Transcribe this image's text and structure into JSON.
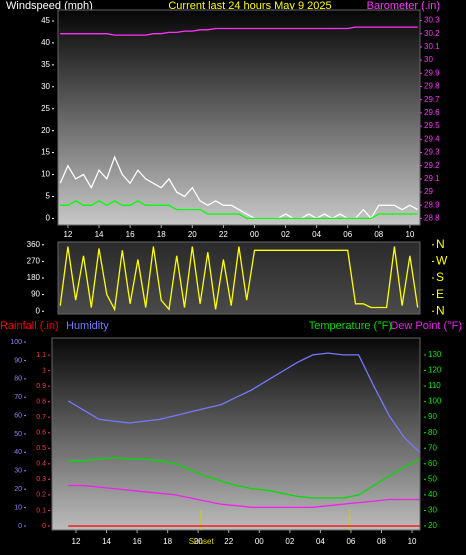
{
  "chart_data": [
    {
      "type": "line",
      "title": "Current last 24 hours May 9 2025",
      "ylabel": "Windspeed (mph)",
      "y2label": "Barometer (.in)",
      "x": [
        11.5,
        12,
        12.5,
        13,
        13.5,
        14,
        14.5,
        15,
        15.5,
        16,
        16.5,
        17,
        17.5,
        18,
        18.5,
        19,
        19.5,
        20,
        20.5,
        21,
        21.5,
        22,
        22.5,
        23,
        23.5,
        24,
        24.5,
        25,
        25.5,
        26,
        26.5,
        27,
        27.5,
        28,
        28.5,
        29,
        29.5,
        30,
        30.5,
        31,
        31.5,
        32,
        32.5,
        33,
        33.5,
        34,
        34.5
      ],
      "xlim": [
        11.36,
        34.65
      ],
      "xticks": [
        12,
        14,
        16,
        18,
        20,
        22,
        {
          "value": 24,
          "label": "00"
        },
        {
          "value": 26,
          "label": "02"
        },
        {
          "value": 28,
          "label": "04"
        },
        {
          "value": 30,
          "label": "06"
        },
        {
          "value": 32,
          "label": "08"
        },
        {
          "value": 34,
          "label": "10"
        }
      ],
      "ylim": [
        -1.5,
        47.5
      ],
      "yticks": [
        0,
        5,
        10,
        15,
        20,
        25,
        30,
        35,
        40,
        45
      ],
      "ycolor": "#ffffff",
      "y2lim": [
        28.75,
        30.38
      ],
      "y2ticks": [
        28.8,
        28.9,
        29,
        29.1,
        29.2,
        29.3,
        29.4,
        29.5,
        29.6,
        29.7,
        29.8,
        29.9,
        30,
        30.1,
        30.2,
        30.3
      ],
      "y2color": "#ff33ff",
      "series": [
        {
          "color": "#ffffff",
          "values": [
            8,
            12,
            9,
            10,
            7,
            11,
            9,
            14,
            10,
            8,
            11,
            9,
            8,
            7,
            9,
            6,
            5,
            7,
            4,
            3,
            4,
            3,
            3,
            2,
            1,
            0,
            0,
            0,
            0,
            1,
            0,
            0,
            1,
            0,
            1,
            0,
            1,
            0,
            0,
            2,
            0,
            3,
            3,
            3,
            2,
            3,
            2
          ]
        },
        {
          "color": "#00ff00",
          "values": [
            3,
            3,
            4,
            3,
            3,
            4,
            3,
            4,
            3,
            3,
            4,
            3,
            3,
            3,
            3,
            2,
            2,
            2,
            2,
            1,
            1,
            1,
            1,
            1,
            0,
            0,
            0,
            0,
            0,
            0,
            0,
            0,
            0,
            0,
            0,
            0,
            0,
            0,
            0,
            0,
            0,
            1,
            1,
            1,
            1,
            1,
            1
          ]
        },
        {
          "color": "#ff33ff",
          "axis": "y2",
          "values": [
            30.2,
            30.2,
            30.2,
            30.2,
            30.2,
            30.2,
            30.2,
            30.19,
            30.19,
            30.19,
            30.19,
            30.19,
            30.2,
            30.2,
            30.21,
            30.21,
            30.22,
            30.22,
            30.23,
            30.23,
            30.24,
            30.24,
            30.24,
            30.24,
            30.24,
            30.24,
            30.24,
            30.24,
            30.24,
            30.24,
            30.24,
            30.24,
            30.24,
            30.24,
            30.24,
            30.24,
            30.24,
            30.24,
            30.25,
            30.25,
            30.25,
            30.25,
            30.25,
            30.25,
            30.25,
            30.25,
            30.25
          ]
        }
      ]
    },
    {
      "type": "line",
      "x": [
        11.5,
        12,
        12.5,
        13,
        13.5,
        14,
        14.5,
        15,
        15.5,
        16,
        16.5,
        17,
        17.5,
        18,
        18.5,
        19,
        19.5,
        20,
        20.5,
        21,
        21.5,
        22,
        22.5,
        23,
        23.5,
        24,
        24.5,
        25,
        25.5,
        26,
        26.5,
        27,
        27.5,
        28,
        28.5,
        29,
        29.5,
        30,
        30.5,
        31,
        31.5,
        32,
        32.5,
        33,
        33.5,
        34,
        34.5
      ],
      "xlim": [
        11.36,
        34.65
      ],
      "ylim": [
        -15,
        375
      ],
      "yticks": [
        0,
        90,
        180,
        270,
        360
      ],
      "ycolor": "#ffffff",
      "y2lim": [
        -15,
        375
      ],
      "y2ticks": [
        {
          "value": 0,
          "label": "N"
        },
        {
          "value": 90,
          "label": "E"
        },
        {
          "value": 180,
          "label": "S"
        },
        {
          "value": 270,
          "label": "W"
        },
        {
          "value": 360,
          "label": "N"
        }
      ],
      "y2color": "#ffff00",
      "series": [
        {
          "color": "#ffff00",
          "values": [
            30,
            350,
            60,
            300,
            20,
            340,
            90,
            10,
            330,
            40,
            280,
            20,
            350,
            60,
            10,
            300,
            20,
            350,
            40,
            320,
            10,
            280,
            30,
            350,
            60,
            330,
            330,
            330,
            330,
            330,
            330,
            330,
            330,
            330,
            330,
            330,
            330,
            330,
            40,
            40,
            20,
            20,
            20,
            350,
            30,
            300,
            20
          ]
        }
      ]
    },
    {
      "type": "line",
      "x": [
        11.5,
        12.5,
        13.5,
        14.5,
        15.5,
        16.5,
        17.5,
        18.5,
        19.5,
        20.5,
        21.5,
        22.5,
        23.5,
        24.5,
        25.5,
        26.5,
        27.5,
        28.5,
        29.5,
        30.5,
        31.5,
        32.5,
        33.5,
        34.5
      ],
      "xlim": [
        10.43,
        34.52
      ],
      "xticks": [
        12,
        14,
        16,
        18,
        20,
        22,
        {
          "value": 24,
          "label": "00"
        },
        {
          "value": 26,
          "label": "02"
        },
        {
          "value": 28,
          "label": "04"
        },
        {
          "value": 30,
          "label": "06"
        },
        {
          "value": 32,
          "label": "08"
        },
        {
          "value": 34,
          "label": "10"
        }
      ],
      "ylim": [
        -0.026,
        1.21
      ],
      "yticks": [
        0,
        0.1,
        0.2,
        0.3,
        0.4,
        0.5,
        0.6,
        0.7,
        0.8,
        0.9,
        1,
        1.1
      ],
      "ycolor": "#ff3355",
      "y2lim": [
        17.4,
        140.9
      ],
      "y2ticks": [
        20,
        30,
        40,
        50,
        60,
        70,
        80,
        90,
        100,
        110,
        120,
        130
      ],
      "y2color": "#00ee00",
      "y3lim": [
        -2.2,
        102.2
      ],
      "y3ticks": [
        0,
        10,
        20,
        30,
        40,
        50,
        60,
        70,
        80,
        90,
        100
      ],
      "y3color": "#8888ff",
      "series": [
        {
          "name": "Rainfall (.in)",
          "color": "#ff0000",
          "values": [
            0,
            0,
            0,
            0,
            0,
            0,
            0,
            0,
            0,
            0,
            0,
            0,
            0,
            0,
            0,
            0,
            0,
            0,
            0,
            0,
            0,
            0,
            0,
            0
          ]
        },
        {
          "name": "Humidity",
          "color": "#7777ff",
          "axis": "y3",
          "values": [
            68,
            63,
            58,
            57,
            56,
            57,
            58,
            60,
            62,
            64,
            66,
            70,
            74,
            79,
            84,
            89,
            93,
            94,
            93,
            93,
            76,
            60,
            48,
            40
          ]
        },
        {
          "name": "Temperature (°F)",
          "color": "#00dd00",
          "axis": "y2",
          "values": [
            62,
            62,
            63,
            64,
            63,
            63,
            62,
            60,
            56,
            52,
            49,
            46,
            44,
            43,
            41,
            39,
            38,
            38,
            38,
            40,
            46,
            52,
            58,
            63
          ]
        },
        {
          "name": "Dew Point (°F)",
          "color": "#ee22ee",
          "axis": "y2",
          "values": [
            46,
            46,
            45,
            44,
            43,
            42,
            41,
            40,
            38,
            36,
            34,
            33,
            32,
            32,
            32,
            32,
            32,
            33,
            34,
            35,
            36,
            37,
            37,
            37
          ]
        }
      ],
      "sun_markers": [
        20.2,
        29.9
      ],
      "annotations": [
        {
          "text": "Sunset",
          "x": 20.2
        }
      ]
    }
  ]
}
